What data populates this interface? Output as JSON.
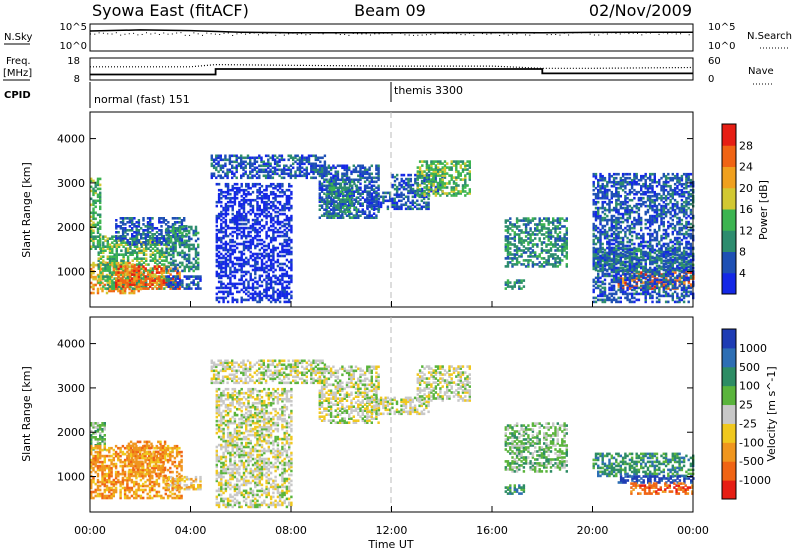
{
  "header": {
    "station": "Syowa East (fitACF)",
    "beam": "Beam 09",
    "date": "02/Nov/2009"
  },
  "noise_panel": {
    "left_label": "N.Sky",
    "right_label": "N.Search",
    "ticks_left": [
      "10^5",
      "10^0"
    ],
    "ticks_right": [
      "10^5",
      "10^0"
    ]
  },
  "freq_panel": {
    "left_label_1": "Freq.",
    "left_label_2": "[MHz]",
    "right_label": "Nave",
    "ticks_left": [
      "18",
      "8"
    ],
    "ticks_right": [
      "60",
      "0"
    ]
  },
  "cpid_panel": {
    "label": "CPID",
    "segments": [
      {
        "label": "normal (fast) 151",
        "start_hour": 0
      },
      {
        "label": "themis 3300",
        "start_hour": 12
      }
    ]
  },
  "time_axis": {
    "label": "Time UT",
    "tick_labels": [
      "00:00",
      "04:00",
      "08:00",
      "12:00",
      "16:00",
      "20:00",
      "00:00"
    ]
  },
  "colors": {
    "power_scale": [
      "#1428e6",
      "#1e50b4",
      "#2d8c6e",
      "#3cb450",
      "#d2c832",
      "#f0a01e",
      "#f06414",
      "#e61e14"
    ],
    "velocity_scale": [
      "#1e3cb4",
      "#2d6eb4",
      "#2d8c64",
      "#5ab43c",
      "#c8c8c8",
      "#f0c81e",
      "#f0961e",
      "#f06414",
      "#e61e14"
    ]
  },
  "chart_data": [
    {
      "type": "line",
      "title": "N.Sky / N.Search",
      "x_units": "hours UT",
      "series": [
        {
          "name": "N.Sky",
          "x": [
            0,
            2,
            4,
            6,
            8,
            10,
            12,
            14,
            16,
            18,
            20,
            22,
            24
          ],
          "y": [
            5000,
            8000,
            6000,
            3000,
            2500,
            2500,
            2400,
            2600,
            2600,
            2400,
            2800,
            3000,
            3000
          ]
        }
      ]
    },
    {
      "type": "line",
      "title": "Freq. / Nave",
      "x_units": "hours UT",
      "series": [
        {
          "name": "Freq.",
          "x": [
            0,
            5,
            5,
            18,
            18,
            24
          ],
          "y": [
            10.5,
            10.5,
            13,
            13,
            11,
            11
          ]
        },
        {
          "name": "Nave",
          "x": [
            0,
            4,
            5,
            8,
            12,
            16,
            18,
            20,
            24
          ],
          "y": [
            36,
            36,
            42,
            40,
            38,
            38,
            32,
            32,
            34
          ]
        }
      ]
    },
    {
      "type": "heatmap",
      "title": "Power",
      "xlabel": "Time UT",
      "ylabel": "Slant Range [km]",
      "colorbar_label": "Power [dB]",
      "colorbar_ticks": [
        "4",
        "8",
        "12",
        "16",
        "20",
        "24",
        "28"
      ],
      "ylim": [
        200,
        4600
      ],
      "yticks": [
        "1000",
        "2000",
        "3000",
        "4000"
      ],
      "xlim": [
        0,
        24
      ],
      "regions": [
        {
          "t0": 0.0,
          "t1": 0.4,
          "r0": 1500,
          "r1": 3100,
          "level": 3
        },
        {
          "t0": 0.0,
          "t1": 2.0,
          "r0": 500,
          "r1": 1200,
          "level": 5
        },
        {
          "t0": 0.3,
          "t1": 3.0,
          "r0": 600,
          "r1": 1800,
          "level": 3
        },
        {
          "t0": 1.0,
          "t1": 3.6,
          "r0": 600,
          "r1": 1100,
          "level": 6
        },
        {
          "t0": 1.0,
          "t1": 3.8,
          "r0": 1600,
          "r1": 2200,
          "level": 1
        },
        {
          "t0": 3.0,
          "t1": 4.3,
          "r0": 1000,
          "r1": 2000,
          "level": 2
        },
        {
          "t0": 3.0,
          "t1": 4.4,
          "r0": 600,
          "r1": 900,
          "level": 1
        },
        {
          "t0": 4.8,
          "t1": 9.3,
          "r0": 3100,
          "r1": 3600,
          "level": 1
        },
        {
          "t0": 5.0,
          "t1": 8.0,
          "r0": 300,
          "r1": 3000,
          "level": 0
        },
        {
          "t0": 9.1,
          "t1": 11.5,
          "r0": 2200,
          "r1": 3400,
          "level": 1
        },
        {
          "t0": 9.4,
          "t1": 10.6,
          "r0": 2200,
          "r1": 3100,
          "level": 2
        },
        {
          "t0": 11.0,
          "t1": 13.5,
          "r0": 2400,
          "r1": 2800,
          "level": 1
        },
        {
          "t0": 12.0,
          "t1": 14.0,
          "r0": 2800,
          "r1": 3200,
          "level": 1
        },
        {
          "t0": 13.0,
          "t1": 15.1,
          "r0": 2700,
          "r1": 3500,
          "level": 3
        },
        {
          "t0": 16.5,
          "t1": 17.3,
          "r0": 600,
          "r1": 800,
          "level": 2
        },
        {
          "t0": 16.5,
          "t1": 19.0,
          "r0": 1100,
          "r1": 2200,
          "level": 2
        },
        {
          "t0": 20.0,
          "t1": 24.0,
          "r0": 1000,
          "r1": 1500,
          "level": 2
        },
        {
          "t0": 21.0,
          "t1": 24.0,
          "r0": 600,
          "r1": 1000,
          "level": 6
        },
        {
          "t0": 20.0,
          "t1": 24.0,
          "r0": 300,
          "r1": 3200,
          "level": 1
        }
      ]
    },
    {
      "type": "heatmap",
      "title": "Velocity",
      "xlabel": "Time UT",
      "ylabel": "Slant Range [km]",
      "colorbar_label": "Velocity [m s^-1]",
      "colorbar_ticks": [
        "1000",
        "500",
        "100",
        "25",
        "-25",
        "-100",
        "-500",
        "-1000"
      ],
      "ylim": [
        200,
        4600
      ],
      "yticks": [
        "1000",
        "2000",
        "3000",
        "4000"
      ],
      "xlim": [
        0,
        24
      ],
      "regions": [
        {
          "t0": 0.0,
          "t1": 0.6,
          "r0": 1600,
          "r1": 2200,
          "level": 3
        },
        {
          "t0": 0.0,
          "t1": 3.6,
          "r0": 500,
          "r1": 1700,
          "level": 6
        },
        {
          "t0": 1.5,
          "t1": 3.0,
          "r0": 1000,
          "r1": 1800,
          "level": 6
        },
        {
          "t0": 3.0,
          "t1": 4.4,
          "r0": 700,
          "r1": 1000,
          "level": 5
        },
        {
          "t0": 4.8,
          "t1": 9.3,
          "r0": 3100,
          "r1": 3600,
          "level": 4
        },
        {
          "t0": 5.0,
          "t1": 8.0,
          "r0": 300,
          "r1": 3000,
          "level": 4
        },
        {
          "t0": 9.1,
          "t1": 11.5,
          "r0": 2200,
          "r1": 3500,
          "level": 4
        },
        {
          "t0": 11.0,
          "t1": 13.5,
          "r0": 2400,
          "r1": 2800,
          "level": 4
        },
        {
          "t0": 13.0,
          "t1": 15.1,
          "r0": 2700,
          "r1": 3500,
          "level": 4
        },
        {
          "t0": 16.5,
          "t1": 17.3,
          "r0": 600,
          "r1": 800,
          "level": 2
        },
        {
          "t0": 16.5,
          "t1": 19.0,
          "r0": 1100,
          "r1": 2200,
          "level": 3
        },
        {
          "t0": 20.0,
          "t1": 24.0,
          "r0": 1000,
          "r1": 1500,
          "level": 2
        },
        {
          "t0": 21.0,
          "t1": 24.0,
          "r0": 850,
          "r1": 1000,
          "level": 0
        },
        {
          "t0": 21.5,
          "t1": 24.0,
          "r0": 600,
          "r1": 850,
          "level": 7
        }
      ]
    }
  ]
}
